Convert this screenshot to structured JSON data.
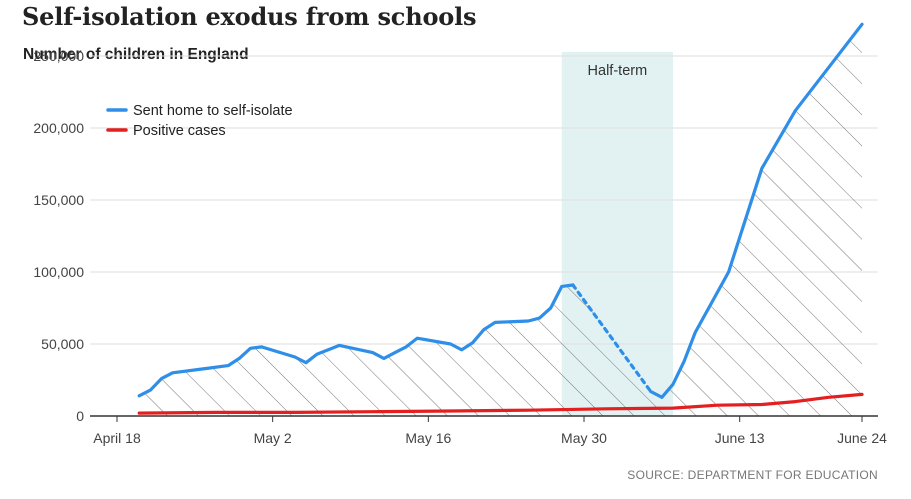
{
  "header": {
    "title": "Self-isolation exodus from schools",
    "subtitle": "Number of children in England"
  },
  "footer": {
    "source": "SOURCE: DEPARTMENT FOR EDUCATION"
  },
  "colors": {
    "sent_home": "#2e8ee8",
    "positive": "#e41f1f",
    "band": "#e2f2f3",
    "grid": "#dddddd",
    "hatch": "#555555"
  },
  "chart_data": {
    "type": "line",
    "title": "Self-isolation exodus from schools",
    "ylabel": "Number of children in England",
    "xlabel": "",
    "ylim": [
      0,
      275000
    ],
    "yticks": [
      0,
      50000,
      100000,
      150000,
      200000,
      250000
    ],
    "ytick_labels": [
      "0",
      "50,000",
      "100,000",
      "150,000",
      "200,000",
      "250,000"
    ],
    "x_domain": [
      "2021-04-18",
      "2021-06-25"
    ],
    "xticks": [
      "2021-04-18",
      "2021-05-02",
      "2021-05-16",
      "2021-05-30",
      "2021-06-13",
      "2021-06-24"
    ],
    "xtick_labels": [
      "April 18",
      "May 2",
      "May 16",
      "May 30",
      "June 13",
      "June 24"
    ],
    "legend": "top-left",
    "grid": "horizontal",
    "shaded_region": {
      "label": "Half-term",
      "start": "2021-05-28",
      "end": "2021-06-07"
    },
    "series": [
      {
        "name": "Sent home to self-isolate",
        "color": "#2e8ee8",
        "points": [
          [
            "2021-04-20",
            14000
          ],
          [
            "2021-04-21",
            18000
          ],
          [
            "2021-04-22",
            26000
          ],
          [
            "2021-04-23",
            30000
          ],
          [
            "2021-04-26",
            33000
          ],
          [
            "2021-04-28",
            35000
          ],
          [
            "2021-04-29",
            40000
          ],
          [
            "2021-04-30",
            47000
          ],
          [
            "2021-05-01",
            48000
          ],
          [
            "2021-05-04",
            41000
          ],
          [
            "2021-05-05",
            37000
          ],
          [
            "2021-05-06",
            43000
          ],
          [
            "2021-05-07",
            46000
          ],
          [
            "2021-05-08",
            49000
          ],
          [
            "2021-05-11",
            44000
          ],
          [
            "2021-05-12",
            40000
          ],
          [
            "2021-05-13",
            44000
          ],
          [
            "2021-05-14",
            48000
          ],
          [
            "2021-05-15",
            54000
          ],
          [
            "2021-05-18",
            50000
          ],
          [
            "2021-05-19",
            46000
          ],
          [
            "2021-05-20",
            51000
          ],
          [
            "2021-05-21",
            60000
          ],
          [
            "2021-05-22",
            65000
          ],
          [
            "2021-05-25",
            66000
          ],
          [
            "2021-05-26",
            68000
          ],
          [
            "2021-05-27",
            75000
          ],
          [
            "2021-05-28",
            90000
          ],
          [
            "2021-05-29",
            91000
          ],
          [
            "2021-06-05",
            17000
          ],
          [
            "2021-06-06",
            13000
          ],
          [
            "2021-06-07",
            22000
          ],
          [
            "2021-06-08",
            38000
          ],
          [
            "2021-06-09",
            58000
          ],
          [
            "2021-06-12",
            100000
          ],
          [
            "2021-06-13",
            124000
          ],
          [
            "2021-06-15",
            172000
          ],
          [
            "2021-06-18",
            212000
          ],
          [
            "2021-06-24",
            272000
          ]
        ],
        "dotted_between": [
          "2021-05-29",
          "2021-06-05"
        ]
      },
      {
        "name": "Positive cases",
        "color": "#e41f1f",
        "points": [
          [
            "2021-04-20",
            2000
          ],
          [
            "2021-04-27",
            2500
          ],
          [
            "2021-05-04",
            2500
          ],
          [
            "2021-05-11",
            3000
          ],
          [
            "2021-05-18",
            3500
          ],
          [
            "2021-05-25",
            4000
          ],
          [
            "2021-06-01",
            5000
          ],
          [
            "2021-06-07",
            5500
          ],
          [
            "2021-06-11",
            7500
          ],
          [
            "2021-06-15",
            8000
          ],
          [
            "2021-06-18",
            10000
          ],
          [
            "2021-06-21",
            13000
          ],
          [
            "2021-06-24",
            15000
          ]
        ]
      }
    ]
  }
}
